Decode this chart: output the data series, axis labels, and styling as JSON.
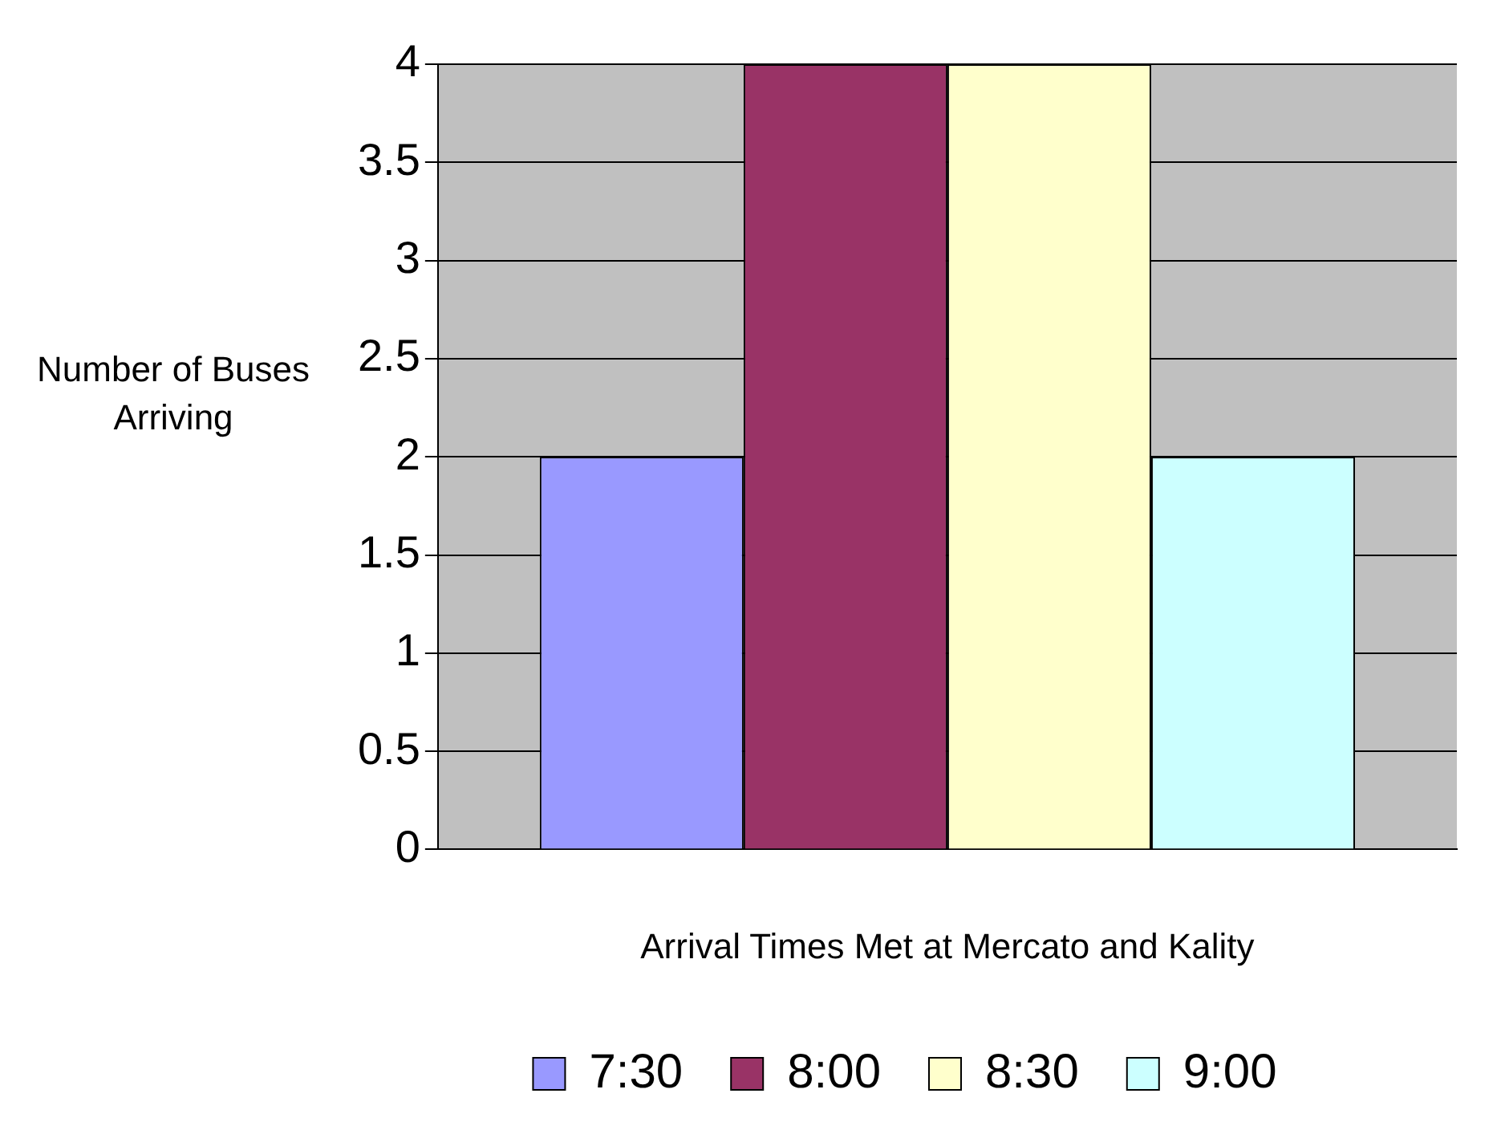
{
  "chart_data": {
    "type": "bar",
    "xlabel": "Arrival Times Met at Mercato and Kality",
    "ylabel": "Number of Buses Arriving",
    "categories": [
      null
    ],
    "series": [
      {
        "name": "7:30",
        "color": "#9999ff",
        "values": [
          2
        ]
      },
      {
        "name": "8:00",
        "color": "#993366",
        "values": [
          4
        ]
      },
      {
        "name": "8:30",
        "color": "#ffffcc",
        "values": [
          4
        ]
      },
      {
        "name": "9:00",
        "color": "#ccffff",
        "values": [
          2
        ]
      }
    ],
    "ylim": [
      0,
      4
    ],
    "yticks": [
      0,
      0.5,
      1,
      1.5,
      2,
      2.5,
      3,
      3.5,
      4
    ],
    "grid": "y",
    "legend": "bottom"
  }
}
